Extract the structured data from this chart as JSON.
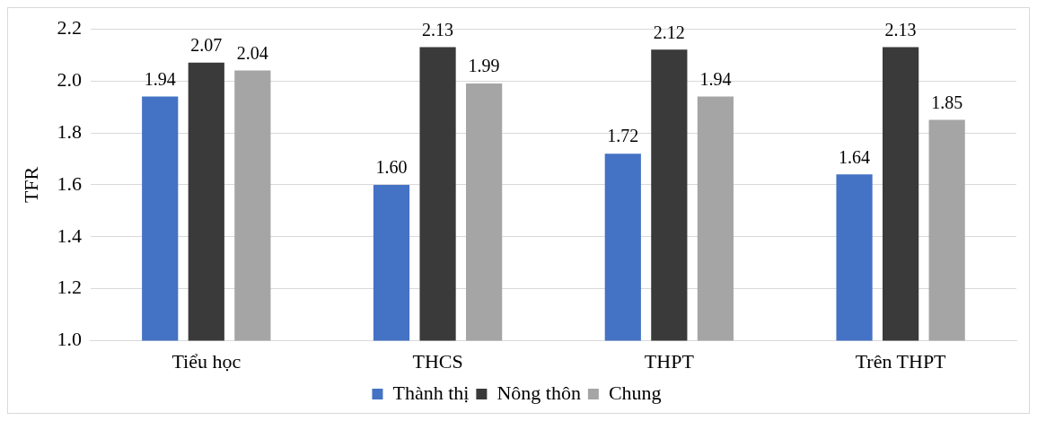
{
  "chart_data": {
    "type": "bar",
    "ylabel": "TFR",
    "categories": [
      "Tiểu học",
      "THCS",
      "THPT",
      "Trên THPT"
    ],
    "series": [
      {
        "name": "Thành thị",
        "color": "#4472c4",
        "values": [
          1.94,
          1.6,
          1.72,
          1.64
        ],
        "value_labels": [
          "1.94",
          "1.60",
          "1.72",
          "1.64"
        ]
      },
      {
        "name": "Nông thôn",
        "color": "#3a3a3a",
        "values": [
          2.07,
          2.13,
          2.12,
          2.13
        ],
        "value_labels": [
          "2.07",
          "2.13",
          "2.12",
          "2.13"
        ]
      },
      {
        "name": "Chung",
        "color": "#a5a5a5",
        "values": [
          2.04,
          1.99,
          1.94,
          1.85
        ],
        "value_labels": [
          "2.04",
          "1.99",
          "1.94",
          "1.85"
        ]
      }
    ],
    "ylim": [
      1.0,
      2.2
    ],
    "yticks": [
      {
        "value": 1.0,
        "label": "1.0"
      },
      {
        "value": 1.2,
        "label": "1.2"
      },
      {
        "value": 1.4,
        "label": "1.4"
      },
      {
        "value": 1.6,
        "label": "1.6"
      },
      {
        "value": 1.8,
        "label": "1.8"
      },
      {
        "value": 2.0,
        "label": "2.0"
      },
      {
        "value": 2.2,
        "label": "2.2"
      }
    ],
    "grid": "y",
    "legend": "bottom"
  }
}
